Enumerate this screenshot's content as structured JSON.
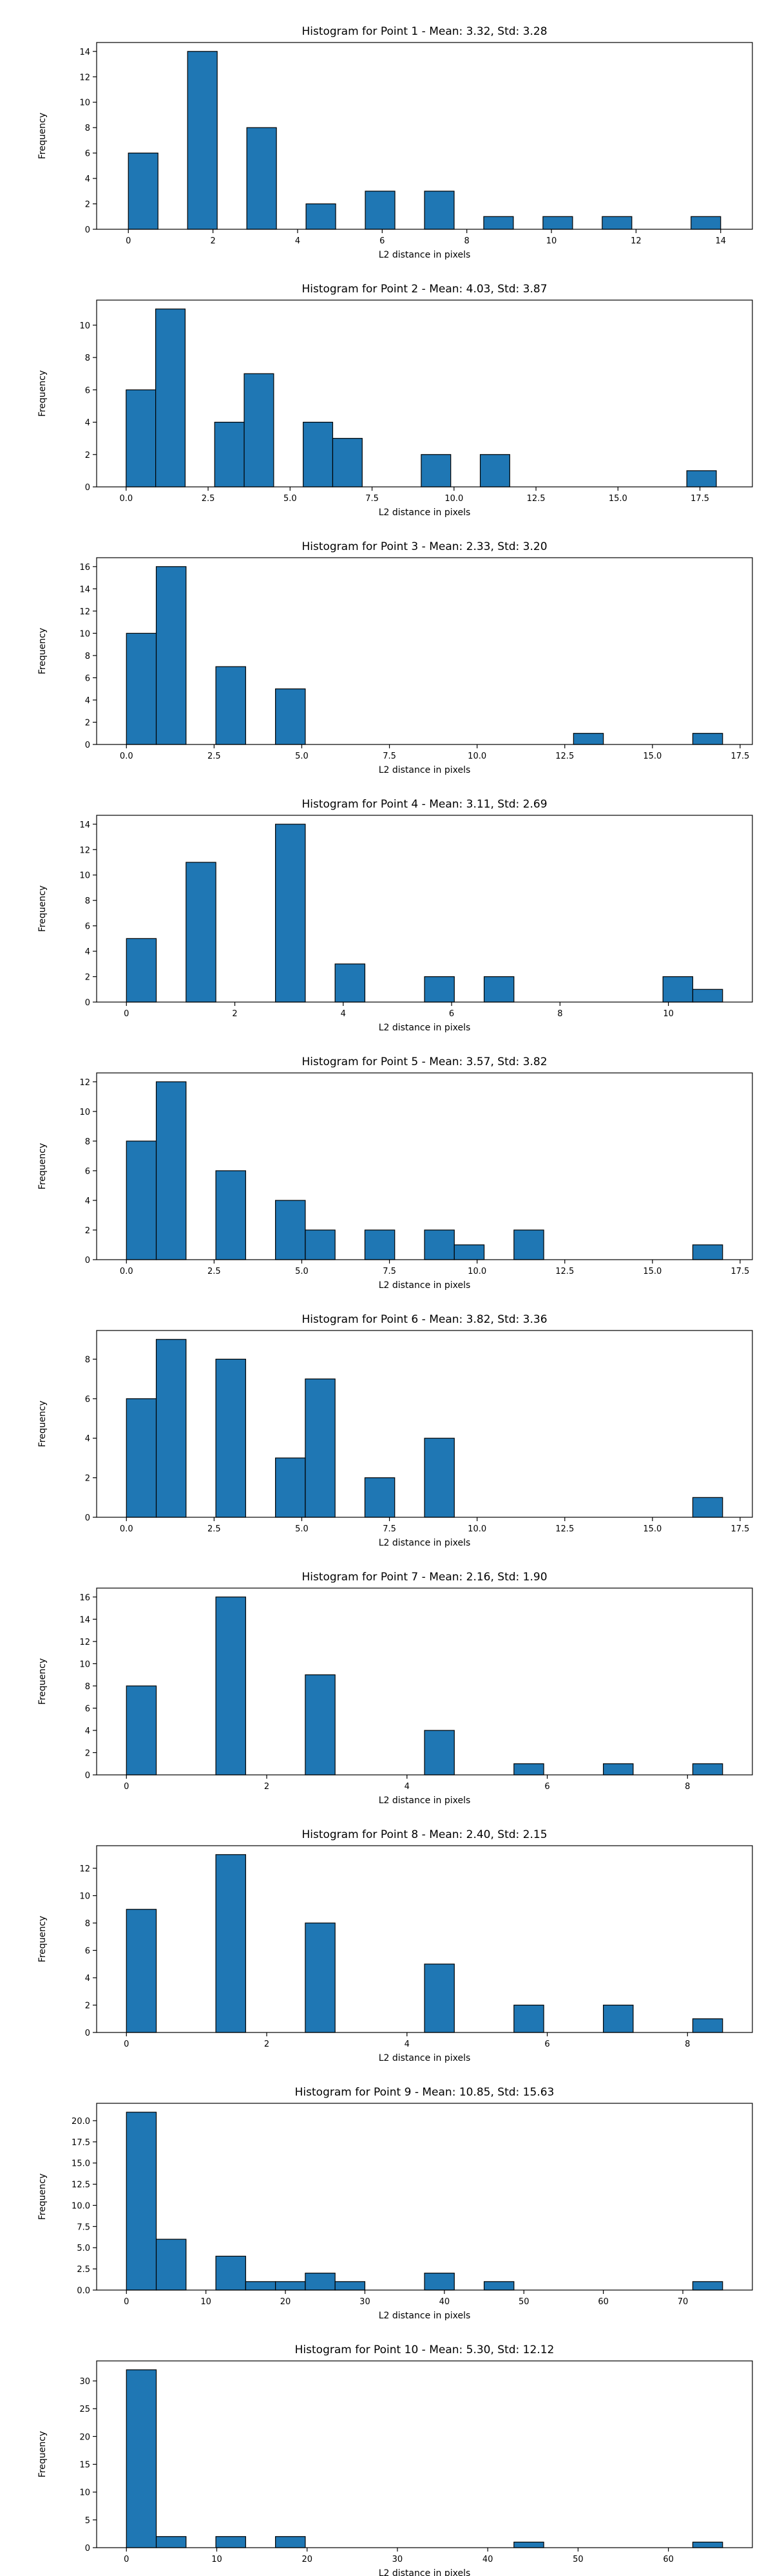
{
  "chart_data": [
    {
      "type": "bar",
      "title": "Histogram for Point 1 - Mean: 3.32, Std: 3.28",
      "xlabel": "L2 distance in pixels",
      "ylabel": "Frequency",
      "xlim": [
        -0.75,
        14.75
      ],
      "ylim": [
        0,
        14.7
      ],
      "xticks": [
        0,
        2,
        4,
        6,
        8,
        10,
        12,
        14
      ],
      "xtick_labels": [
        "0",
        "2",
        "4",
        "6",
        "8",
        "10",
        "12",
        "14"
      ],
      "yticks": [
        0,
        2,
        4,
        6,
        8,
        10,
        12,
        14
      ],
      "ytick_labels": [
        "0",
        "2",
        "4",
        "6",
        "8",
        "10",
        "12",
        "14"
      ],
      "bins": [
        {
          "x0": 0,
          "x1": 0.7,
          "count": 6
        },
        {
          "x0": 1.4,
          "x1": 2.1,
          "count": 14
        },
        {
          "x0": 2.8,
          "x1": 3.5,
          "count": 8
        },
        {
          "x0": 4.2,
          "x1": 4.9,
          "count": 2
        },
        {
          "x0": 5.6,
          "x1": 6.3,
          "count": 3
        },
        {
          "x0": 7.0,
          "x1": 7.7,
          "count": 3
        },
        {
          "x0": 8.4,
          "x1": 9.1,
          "count": 1
        },
        {
          "x0": 9.8,
          "x1": 10.5,
          "count": 1
        },
        {
          "x0": 11.2,
          "x1": 11.9,
          "count": 1
        },
        {
          "x0": 13.3,
          "x1": 14.0,
          "count": 1
        }
      ]
    },
    {
      "type": "bar",
      "title": "Histogram for Point 2 - Mean: 4.03, Std: 3.87",
      "xlabel": "L2 distance in pixels",
      "ylabel": "Frequency",
      "xlim": [
        -0.9,
        19.1
      ],
      "ylim": [
        0,
        11.55
      ],
      "xticks": [
        0,
        2.5,
        5,
        7.5,
        10,
        12.5,
        15,
        17.5
      ],
      "xtick_labels": [
        "0.0",
        "2.5",
        "5.0",
        "7.5",
        "10.0",
        "12.5",
        "15.0",
        "17.5"
      ],
      "yticks": [
        0,
        2,
        4,
        6,
        8,
        10
      ],
      "ytick_labels": [
        "0",
        "2",
        "4",
        "6",
        "8",
        "10"
      ],
      "bins": [
        {
          "x0": 0,
          "x1": 0.9,
          "count": 6
        },
        {
          "x0": 0.9,
          "x1": 1.8,
          "count": 11
        },
        {
          "x0": 2.7,
          "x1": 3.6,
          "count": 4
        },
        {
          "x0": 3.6,
          "x1": 4.5,
          "count": 7
        },
        {
          "x0": 5.4,
          "x1": 6.3,
          "count": 4
        },
        {
          "x0": 6.3,
          "x1": 7.2,
          "count": 3
        },
        {
          "x0": 9.0,
          "x1": 9.9,
          "count": 2
        },
        {
          "x0": 10.8,
          "x1": 11.7,
          "count": 2
        },
        {
          "x0": 17.1,
          "x1": 18.0,
          "count": 1
        }
      ]
    },
    {
      "type": "bar",
      "title": "Histogram for Point 3 - Mean: 2.33, Std: 3.20",
      "xlabel": "L2 distance in pixels",
      "ylabel": "Frequency",
      "xlim": [
        -0.85,
        17.85
      ],
      "ylim": [
        0,
        16.8
      ],
      "xticks": [
        0,
        2.5,
        5,
        7.5,
        10,
        12.5,
        15,
        17.5
      ],
      "xtick_labels": [
        "0.0",
        "2.5",
        "5.0",
        "7.5",
        "10.0",
        "12.5",
        "15.0",
        "17.5"
      ],
      "yticks": [
        0,
        2,
        4,
        6,
        8,
        10,
        12,
        14,
        16
      ],
      "ytick_labels": [
        "0",
        "2",
        "4",
        "6",
        "8",
        "10",
        "12",
        "14",
        "16"
      ],
      "bins": [
        {
          "x0": 0,
          "x1": 0.85,
          "count": 10
        },
        {
          "x0": 0.85,
          "x1": 1.7,
          "count": 16
        },
        {
          "x0": 2.55,
          "x1": 3.4,
          "count": 7
        },
        {
          "x0": 4.25,
          "x1": 5.1,
          "count": 5
        },
        {
          "x0": 12.75,
          "x1": 13.6,
          "count": 1
        },
        {
          "x0": 16.15,
          "x1": 17.0,
          "count": 1
        }
      ]
    },
    {
      "type": "bar",
      "title": "Histogram for Point 4 - Mean: 3.11, Std: 2.69",
      "xlabel": "L2 distance in pixels",
      "ylabel": "Frequency",
      "xlim": [
        -0.55,
        11.55
      ],
      "ylim": [
        0,
        14.7
      ],
      "xticks": [
        0,
        2,
        4,
        6,
        8,
        10
      ],
      "xtick_labels": [
        "0",
        "2",
        "4",
        "6",
        "8",
        "10"
      ],
      "yticks": [
        0,
        2,
        4,
        6,
        8,
        10,
        12,
        14
      ],
      "ytick_labels": [
        "0",
        "2",
        "4",
        "6",
        "8",
        "10",
        "12",
        "14"
      ],
      "bins": [
        {
          "x0": 0,
          "x1": 0.55,
          "count": 5
        },
        {
          "x0": 1.1,
          "x1": 1.65,
          "count": 11
        },
        {
          "x0": 2.75,
          "x1": 3.3,
          "count": 14
        },
        {
          "x0": 3.85,
          "x1": 4.4,
          "count": 3
        },
        {
          "x0": 5.5,
          "x1": 6.05,
          "count": 2
        },
        {
          "x0": 6.6,
          "x1": 7.15,
          "count": 2
        },
        {
          "x0": 9.9,
          "x1": 10.45,
          "count": 2
        },
        {
          "x0": 10.45,
          "x1": 11.0,
          "count": 1
        }
      ]
    },
    {
      "type": "bar",
      "title": "Histogram for Point 5 - Mean: 3.57, Std: 3.82",
      "xlabel": "L2 distance in pixels",
      "ylabel": "Frequency",
      "xlim": [
        -0.85,
        17.85
      ],
      "ylim": [
        0,
        12.6
      ],
      "xticks": [
        0,
        2.5,
        5,
        7.5,
        10,
        12.5,
        15,
        17.5
      ],
      "xtick_labels": [
        "0.0",
        "2.5",
        "5.0",
        "7.5",
        "10.0",
        "12.5",
        "15.0",
        "17.5"
      ],
      "yticks": [
        0,
        2,
        4,
        6,
        8,
        10,
        12
      ],
      "ytick_labels": [
        "0",
        "2",
        "4",
        "6",
        "8",
        "10",
        "12"
      ],
      "bins": [
        {
          "x0": 0,
          "x1": 0.85,
          "count": 8
        },
        {
          "x0": 0.85,
          "x1": 1.7,
          "count": 12
        },
        {
          "x0": 2.55,
          "x1": 3.4,
          "count": 6
        },
        {
          "x0": 4.25,
          "x1": 5.1,
          "count": 4
        },
        {
          "x0": 5.1,
          "x1": 5.95,
          "count": 2
        },
        {
          "x0": 6.8,
          "x1": 7.65,
          "count": 2
        },
        {
          "x0": 8.5,
          "x1": 9.35,
          "count": 2
        },
        {
          "x0": 9.35,
          "x1": 10.2,
          "count": 1
        },
        {
          "x0": 11.05,
          "x1": 11.9,
          "count": 2
        },
        {
          "x0": 16.15,
          "x1": 17.0,
          "count": 1
        }
      ]
    },
    {
      "type": "bar",
      "title": "Histogram for Point 6 - Mean: 3.82, Std: 3.36",
      "xlabel": "L2 distance in pixels",
      "ylabel": "Frequency",
      "xlim": [
        -0.85,
        17.85
      ],
      "ylim": [
        0,
        9.45
      ],
      "xticks": [
        0,
        2.5,
        5,
        7.5,
        10,
        12.5,
        15,
        17.5
      ],
      "xtick_labels": [
        "0.0",
        "2.5",
        "5.0",
        "7.5",
        "10.0",
        "12.5",
        "15.0",
        "17.5"
      ],
      "yticks": [
        0,
        2,
        4,
        6,
        8
      ],
      "ytick_labels": [
        "0",
        "2",
        "4",
        "6",
        "8"
      ],
      "bins": [
        {
          "x0": 0,
          "x1": 0.85,
          "count": 6
        },
        {
          "x0": 0.85,
          "x1": 1.7,
          "count": 9
        },
        {
          "x0": 2.55,
          "x1": 3.4,
          "count": 8
        },
        {
          "x0": 4.25,
          "x1": 5.1,
          "count": 3
        },
        {
          "x0": 5.1,
          "x1": 5.95,
          "count": 7
        },
        {
          "x0": 6.8,
          "x1": 7.65,
          "count": 2
        },
        {
          "x0": 8.5,
          "x1": 9.35,
          "count": 4
        },
        {
          "x0": 16.15,
          "x1": 17.0,
          "count": 1
        }
      ]
    },
    {
      "type": "bar",
      "title": "Histogram for Point 7 - Mean: 2.16, Std: 1.90",
      "xlabel": "L2 distance in pixels",
      "ylabel": "Frequency",
      "xlim": [
        -0.425,
        8.925
      ],
      "ylim": [
        0,
        16.8
      ],
      "xticks": [
        0,
        2,
        4,
        6,
        8
      ],
      "xtick_labels": [
        "0",
        "2",
        "4",
        "6",
        "8"
      ],
      "yticks": [
        0,
        2,
        4,
        6,
        8,
        10,
        12,
        14,
        16
      ],
      "ytick_labels": [
        "0",
        "2",
        "4",
        "6",
        "8",
        "10",
        "12",
        "14",
        "16"
      ],
      "bins": [
        {
          "x0": 0,
          "x1": 0.425,
          "count": 8
        },
        {
          "x0": 1.275,
          "x1": 1.7,
          "count": 16
        },
        {
          "x0": 2.55,
          "x1": 2.975,
          "count": 9
        },
        {
          "x0": 4.25,
          "x1": 4.675,
          "count": 4
        },
        {
          "x0": 5.525,
          "x1": 5.95,
          "count": 1
        },
        {
          "x0": 6.8,
          "x1": 7.225,
          "count": 1
        },
        {
          "x0": 8.075,
          "x1": 8.5,
          "count": 1
        }
      ]
    },
    {
      "type": "bar",
      "title": "Histogram for Point 8 - Mean: 2.40, Std: 2.15",
      "xlabel": "L2 distance in pixels",
      "ylabel": "Frequency",
      "xlim": [
        -0.425,
        8.925
      ],
      "ylim": [
        0,
        13.65
      ],
      "xticks": [
        0,
        2,
        4,
        6,
        8
      ],
      "xtick_labels": [
        "0",
        "2",
        "4",
        "6",
        "8"
      ],
      "yticks": [
        0,
        2,
        4,
        6,
        8,
        10,
        12
      ],
      "ytick_labels": [
        "0",
        "2",
        "4",
        "6",
        "8",
        "10",
        "12"
      ],
      "bins": [
        {
          "x0": 0,
          "x1": 0.425,
          "count": 9
        },
        {
          "x0": 1.275,
          "x1": 1.7,
          "count": 13
        },
        {
          "x0": 2.55,
          "x1": 2.975,
          "count": 8
        },
        {
          "x0": 4.25,
          "x1": 4.675,
          "count": 5
        },
        {
          "x0": 5.525,
          "x1": 5.95,
          "count": 2
        },
        {
          "x0": 6.8,
          "x1": 7.225,
          "count": 2
        },
        {
          "x0": 8.075,
          "x1": 8.5,
          "count": 1
        }
      ]
    },
    {
      "type": "bar",
      "title": "Histogram for Point 9 - Mean: 10.85, Std: 15.63",
      "xlabel": "L2 distance in pixels",
      "ylabel": "Frequency",
      "xlim": [
        -3.75,
        78.75
      ],
      "ylim": [
        0,
        22.05
      ],
      "xticks": [
        0,
        10,
        20,
        30,
        40,
        50,
        60,
        70
      ],
      "xtick_labels": [
        "0",
        "10",
        "20",
        "30",
        "40",
        "50",
        "60",
        "70"
      ],
      "yticks": [
        0,
        2.5,
        5,
        7.5,
        10,
        12.5,
        15,
        17.5,
        20
      ],
      "ytick_labels": [
        "0.0",
        "2.5",
        "5.0",
        "7.5",
        "10.0",
        "12.5",
        "15.0",
        "17.5",
        "20.0"
      ],
      "bins": [
        {
          "x0": 0,
          "x1": 3.75,
          "count": 21
        },
        {
          "x0": 3.75,
          "x1": 7.5,
          "count": 6
        },
        {
          "x0": 11.25,
          "x1": 15.0,
          "count": 4
        },
        {
          "x0": 15.0,
          "x1": 18.75,
          "count": 1
        },
        {
          "x0": 18.75,
          "x1": 22.5,
          "count": 1
        },
        {
          "x0": 22.5,
          "x1": 26.25,
          "count": 2
        },
        {
          "x0": 26.25,
          "x1": 30.0,
          "count": 1
        },
        {
          "x0": 37.5,
          "x1": 41.25,
          "count": 2
        },
        {
          "x0": 45.0,
          "x1": 48.75,
          "count": 1
        },
        {
          "x0": 71.25,
          "x1": 75.0,
          "count": 1
        }
      ]
    },
    {
      "type": "bar",
      "title": "Histogram for Point 10 - Mean: 5.30, Std: 12.12",
      "xlabel": "L2 distance in pixels",
      "ylabel": "Frequency",
      "xlim": [
        -3.3,
        69.3
      ],
      "ylim": [
        0,
        33.6
      ],
      "xticks": [
        0,
        10,
        20,
        30,
        40,
        50,
        60
      ],
      "xtick_labels": [
        "0",
        "10",
        "20",
        "30",
        "40",
        "50",
        "60"
      ],
      "yticks": [
        0,
        5,
        10,
        15,
        20,
        25,
        30
      ],
      "ytick_labels": [
        "0",
        "5",
        "10",
        "15",
        "20",
        "25",
        "30"
      ],
      "bins": [
        {
          "x0": 0,
          "x1": 3.3,
          "count": 32
        },
        {
          "x0": 3.3,
          "x1": 6.6,
          "count": 2
        },
        {
          "x0": 9.9,
          "x1": 13.2,
          "count": 2
        },
        {
          "x0": 16.5,
          "x1": 19.8,
          "count": 2
        },
        {
          "x0": 42.9,
          "x1": 46.2,
          "count": 1
        },
        {
          "x0": 62.7,
          "x1": 66.0,
          "count": 1
        }
      ]
    }
  ],
  "colors": {
    "bar_fill": "#1f77b4",
    "bar_edge": "#000000",
    "axis": "#000000"
  }
}
